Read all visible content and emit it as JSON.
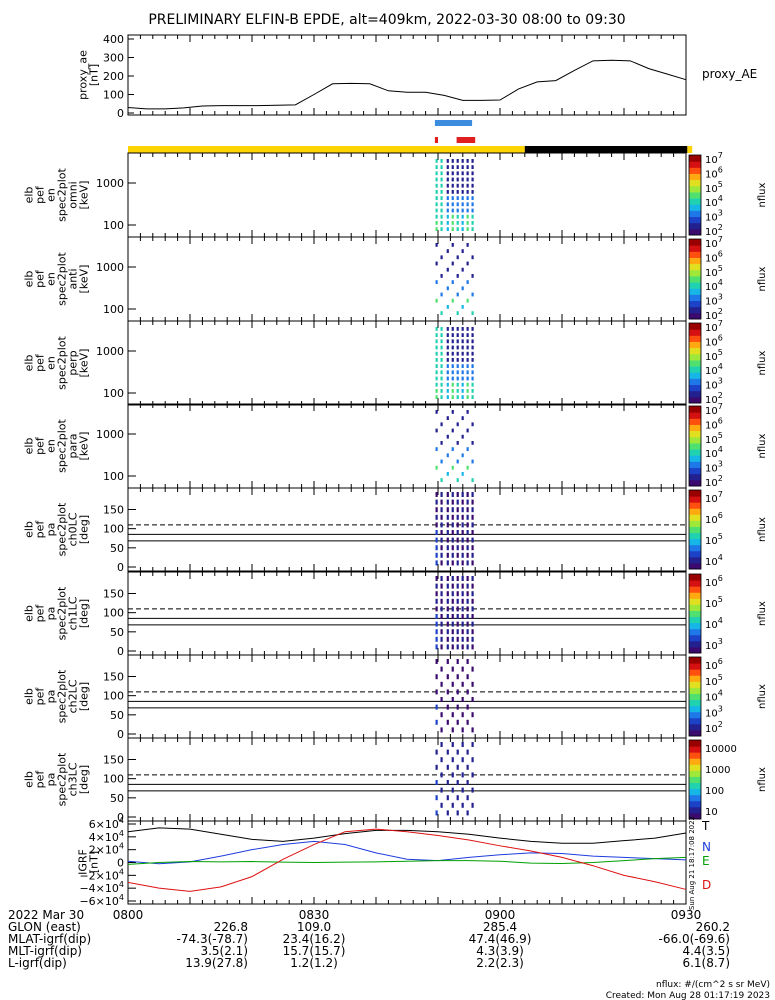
{
  "title": "PRELIMINARY ELFIN-B EPDE, alt=409km, 2022-03-30 08:00 to 09:30",
  "chart_data": [
    {
      "type": "line",
      "id": "proxy_ae",
      "ylabel": [
        "proxy_ae",
        "[nT]"
      ],
      "legend": "proxy_AE",
      "ylim": [
        0,
        400
      ],
      "yticks": [
        "400",
        "300",
        "200",
        "100",
        "0"
      ],
      "x_minutes": [
        0,
        3,
        6,
        9,
        12,
        15,
        18,
        21,
        24,
        27,
        30,
        33,
        36,
        39,
        42,
        45,
        48,
        51,
        54,
        57,
        60,
        63,
        66,
        69,
        72,
        75,
        78,
        81,
        84,
        87,
        90
      ],
      "values": [
        30,
        22,
        22,
        28,
        38,
        40,
        40,
        40,
        42,
        44,
        100,
        158,
        160,
        158,
        120,
        112,
        112,
        95,
        68,
        68,
        70,
        130,
        168,
        175,
        230,
        282,
        285,
        282,
        240,
        210,
        180
      ]
    },
    {
      "type": "bar",
      "id": "science_zone_bars",
      "segments_blue_min": [
        [
          49.5,
          55.5
        ]
      ],
      "segments_red_min": [
        [
          49.5,
          50.0
        ],
        [
          53.0,
          56.0
        ]
      ],
      "orbit_bar_yellow_min": [
        [
          0,
          64
        ],
        [
          90.2,
          91
        ]
      ],
      "orbit_bar_black_min": [
        [
          64,
          90.2
        ]
      ]
    },
    {
      "type": "heatmap",
      "id": "energy_spectra",
      "panels": [
        {
          "ylabel": [
            "elb",
            "pef",
            "en",
            "spec2plot",
            "omni",
            "[keV]"
          ],
          "yticks": [
            "1000",
            "100"
          ]
        },
        {
          "ylabel": [
            "elb",
            "pef",
            "en",
            "spec2plot",
            "anti",
            "[keV]"
          ],
          "yticks": [
            "1000",
            "100"
          ]
        },
        {
          "ylabel": [
            "elb",
            "pef",
            "en",
            "spec2plot",
            "perp",
            "[keV]"
          ],
          "yticks": [
            "1000",
            "100"
          ]
        },
        {
          "ylabel": [
            "elb",
            "pef",
            "en",
            "spec2plot",
            "para",
            "[keV]"
          ],
          "yticks": [
            "1000",
            "100"
          ]
        }
      ],
      "colorbar_label": "nflux",
      "colorbar_range": [
        "10^2",
        "10^7"
      ]
    },
    {
      "type": "heatmap",
      "id": "pitch_angle",
      "panels": [
        {
          "ylabel": [
            "elb",
            "pef",
            "pa",
            "spec2plot",
            "ch0LC",
            "[deg]"
          ],
          "yticks": [
            "150",
            "100",
            "50",
            "0"
          ],
          "cbar_ticks": [
            "10^7",
            "10^6",
            "10^5",
            "10^4"
          ]
        },
        {
          "ylabel": [
            "elb",
            "pef",
            "pa",
            "spec2plot",
            "ch1LC",
            "[deg]"
          ],
          "yticks": [
            "150",
            "100",
            "50",
            "0"
          ],
          "cbar_ticks": [
            "10^6",
            "10^5",
            "10^4",
            "10^3"
          ]
        },
        {
          "ylabel": [
            "elb",
            "pef",
            "pa",
            "spec2plot",
            "ch2LC",
            "[deg]"
          ],
          "yticks": [
            "150",
            "100",
            "50",
            "0"
          ],
          "cbar_ticks": [
            "10^6",
            "10^5",
            "10^4",
            "10^3",
            "10^2"
          ]
        },
        {
          "ylabel": [
            "elb",
            "pef",
            "pa",
            "spec2plot",
            "ch3LC",
            "[deg]"
          ],
          "yticks": [
            "150",
            "100",
            "50",
            "0"
          ],
          "cbar_ticks": [
            "10000",
            "1000",
            "100",
            "10"
          ]
        }
      ],
      "colorbar_label": "nflux",
      "loss_cone_deg": [
        85,
        110,
        68
      ]
    },
    {
      "type": "line",
      "id": "igrf",
      "ylabel": [
        "IGRF",
        "[nT]"
      ],
      "ylim": [
        -60000,
        60000
      ],
      "ytick_values": [
        60000,
        40000,
        20000,
        0,
        -20000,
        -40000,
        -60000
      ],
      "x_minutes": [
        0,
        5,
        10,
        15,
        20,
        25,
        30,
        35,
        40,
        45,
        50,
        55,
        60,
        65,
        70,
        75,
        80,
        85,
        90
      ],
      "series": [
        {
          "name": "T",
          "color": "#000000",
          "values": [
            48000,
            54000,
            52000,
            44000,
            36000,
            33000,
            38000,
            45000,
            50000,
            50000,
            48000,
            44000,
            38000,
            33000,
            30000,
            30000,
            34000,
            38000,
            46000
          ]
        },
        {
          "name": "N",
          "color": "#1e3cdc",
          "values": [
            2000,
            -2000,
            1000,
            10000,
            20000,
            28000,
            33000,
            28000,
            15000,
            5000,
            3000,
            8000,
            12000,
            15000,
            14000,
            10000,
            8000,
            6000,
            4000
          ]
        },
        {
          "name": "E",
          "color": "#00a000",
          "values": [
            -3000,
            0,
            1500,
            1000,
            1500,
            500,
            0,
            500,
            1000,
            2000,
            3000,
            3000,
            2000,
            -1000,
            -1500,
            0,
            3000,
            6000,
            8000
          ]
        },
        {
          "name": "D",
          "color": "#dd1111",
          "values": [
            -31000,
            -40000,
            -45000,
            -38000,
            -22000,
            5000,
            28000,
            48000,
            52000,
            48000,
            42000,
            35000,
            26000,
            18000,
            8000,
            -5000,
            -20000,
            -30000,
            -42000
          ]
        }
      ],
      "side_note": "Sun Aug 21 18:17:08 2022"
    }
  ],
  "xaxis": {
    "date_label": "2022 Mar 30",
    "tick_labels": [
      "0800",
      "0830",
      "0900",
      "0930"
    ],
    "tick_minutes": [
      0,
      30,
      60,
      90
    ],
    "rows": [
      {
        "label": "GLON (east)",
        "values": [
          "226.8",
          "109.0",
          "285.4",
          "260.2"
        ]
      },
      {
        "label": "MLAT-igrf(dip)",
        "values": [
          "-74.3(-78.7)",
          "23.4(16.2)",
          "47.4(46.9)",
          "-66.0(-69.6)"
        ]
      },
      {
        "label": "MLT-igrf(dip)",
        "values": [
          "3.5(2.1)",
          "15.7(15.7)",
          "4.3(3.9)",
          "4.4(3.5)"
        ]
      },
      {
        "label": "L-igrf(dip)",
        "values": [
          "13.9(27.8)",
          "1.2(1.2)",
          "2.2(2.3)",
          "6.1(8.7)"
        ]
      }
    ]
  },
  "footer": {
    "units_note": "nflux: #/(cm^2 s sr MeV)",
    "created": "Created: Mon Aug 28 01:17:19 2023"
  }
}
